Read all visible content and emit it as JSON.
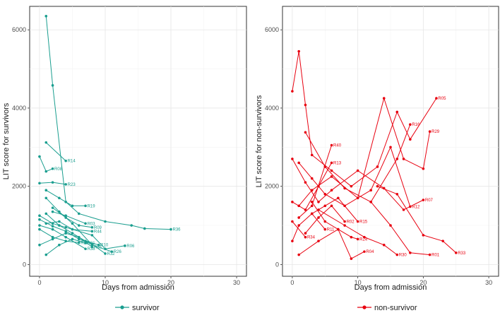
{
  "chart_data": [
    {
      "type": "line",
      "panel": "left",
      "title": "",
      "xlabel": "Days from admission",
      "ylabel": "LIT score for survivors",
      "xlim": [
        -1.5,
        31.5
      ],
      "ylim": [
        -300,
        6600
      ],
      "x_ticks": [
        0,
        10,
        20,
        30
      ],
      "y_ticks": [
        0,
        2000,
        4000,
        6000
      ],
      "grid": true,
      "color": "#1a9e8f",
      "legend_label": "survivor",
      "series": [
        {
          "name": "R36",
          "x": [
            1,
            2,
            4,
            6,
            10,
            14,
            16,
            20
          ],
          "y": [
            6350,
            4580,
            1600,
            1300,
            1100,
            1000,
            920,
            900
          ]
        },
        {
          "name": "R14",
          "x": [
            1,
            4
          ],
          "y": [
            3120,
            2650
          ]
        },
        {
          "name": "R08",
          "x": [
            0,
            1,
            2
          ],
          "y": [
            2760,
            2380,
            2450
          ]
        },
        {
          "name": "R23",
          "x": [
            0,
            2,
            4
          ],
          "y": [
            2080,
            2100,
            2050
          ]
        },
        {
          "name": "R19",
          "x": [
            1,
            3,
            5,
            7
          ],
          "y": [
            1900,
            1700,
            1500,
            1500
          ]
        },
        {
          "name": "R06",
          "x": [
            0,
            2,
            4,
            8,
            10,
            13
          ],
          "y": [
            1250,
            1050,
            950,
            750,
            400,
            480
          ]
        },
        {
          "name": "R26",
          "x": [
            1,
            3,
            5,
            8,
            11
          ],
          "y": [
            1700,
            1350,
            1050,
            500,
            330
          ]
        },
        {
          "name": "R32",
          "x": [
            0,
            2,
            4,
            6,
            8,
            10
          ],
          "y": [
            1150,
            980,
            850,
            650,
            520,
            280
          ]
        },
        {
          "name": "R09",
          "x": [
            2,
            4,
            6,
            8
          ],
          "y": [
            1450,
            1200,
            1000,
            950
          ]
        },
        {
          "name": "R44",
          "x": [
            1,
            3,
            5,
            8
          ],
          "y": [
            1050,
            1100,
            900,
            850
          ]
        },
        {
          "name": "R22",
          "x": [
            0,
            2,
            4,
            6
          ],
          "y": [
            900,
            700,
            600,
            560
          ]
        },
        {
          "name": "R10",
          "x": [
            1,
            3,
            5,
            7,
            9
          ],
          "y": [
            1300,
            1000,
            800,
            600,
            500
          ]
        },
        {
          "name": "R25",
          "x": [
            0,
            2,
            4,
            6,
            8
          ],
          "y": [
            500,
            650,
            800,
            700,
            450
          ]
        },
        {
          "name": "R31",
          "x": [
            1,
            3,
            5,
            7
          ],
          "y": [
            250,
            500,
            650,
            550
          ]
        },
        {
          "name": "R38",
          "x": [
            0,
            2,
            4,
            7
          ],
          "y": [
            1000,
            900,
            700,
            400
          ]
        },
        {
          "name": "R03",
          "x": [
            2,
            4,
            7
          ],
          "y": [
            1350,
            1250,
            1050
          ]
        }
      ]
    },
    {
      "type": "line",
      "panel": "right",
      "title": "",
      "xlabel": "Days from admission",
      "ylabel": "LIT score for non-survivors",
      "xlim": [
        -1.5,
        31.5
      ],
      "ylim": [
        -300,
        6600
      ],
      "x_ticks": [
        0,
        10,
        20,
        30
      ],
      "y_ticks": [
        0,
        2000,
        4000,
        6000
      ],
      "grid": true,
      "color": "#e8000f",
      "legend_label": "non-survivor",
      "series": [
        {
          "name": "R05",
          "x": [
            0,
            1,
            2,
            3,
            6,
            9,
            13,
            16,
            18,
            22
          ],
          "y": [
            4430,
            5450,
            4080,
            2800,
            2400,
            2000,
            2500,
            3900,
            3200,
            4250
          ]
        },
        {
          "name": "R29",
          "x": [
            1,
            3,
            6,
            10,
            14,
            17,
            20,
            21
          ],
          "y": [
            1500,
            1900,
            2250,
            1700,
            4250,
            2700,
            2450,
            3400
          ]
        },
        {
          "name": "R16",
          "x": [
            2,
            5,
            8,
            12,
            16,
            18
          ],
          "y": [
            3380,
            2500,
            1950,
            1600,
            2700,
            3580
          ]
        },
        {
          "name": "R07",
          "x": [
            0,
            2,
            4,
            6,
            10,
            14,
            17,
            20
          ],
          "y": [
            2700,
            2100,
            1600,
            1900,
            2400,
            1950,
            1400,
            1650
          ]
        },
        {
          "name": "R12",
          "x": [
            1,
            3,
            5,
            8,
            12,
            15,
            18
          ],
          "y": [
            2600,
            2200,
            1800,
            1500,
            1900,
            3000,
            1480
          ]
        },
        {
          "name": "R40",
          "x": [
            1,
            3,
            6
          ],
          "y": [
            1200,
            1500,
            3050
          ]
        },
        {
          "name": "R13",
          "x": [
            0,
            2,
            4,
            6
          ],
          "y": [
            1600,
            1400,
            2000,
            2600
          ]
        },
        {
          "name": "R15",
          "x": [
            3,
            5,
            7,
            10
          ],
          "y": [
            1300,
            1500,
            1700,
            1100
          ]
        },
        {
          "name": "R34",
          "x": [
            0,
            2
          ],
          "y": [
            1100,
            700
          ]
        },
        {
          "name": "R24",
          "x": [
            3,
            5,
            7,
            9,
            10
          ],
          "y": [
            1600,
            1100,
            900,
            700,
            650
          ]
        },
        {
          "name": "R04",
          "x": [
            1,
            4,
            7,
            9,
            11
          ],
          "y": [
            250,
            600,
            900,
            150,
            330
          ]
        },
        {
          "name": "R30",
          "x": [
            4,
            8,
            11,
            14,
            16
          ],
          "y": [
            1400,
            1000,
            700,
            500,
            250
          ]
        },
        {
          "name": "R01",
          "x": [
            12,
            15,
            18,
            21
          ],
          "y": [
            1600,
            1000,
            300,
            250
          ]
        },
        {
          "name": "R33",
          "x": [
            13,
            16,
            20,
            23,
            25
          ],
          "y": [
            2000,
            1800,
            750,
            600,
            300
          ]
        },
        {
          "name": "R02",
          "x": [
            2,
            4,
            6,
            8
          ],
          "y": [
            800,
            1200,
            1500,
            1100
          ]
        },
        {
          "name": "R11",
          "x": [
            0,
            1,
            3,
            5
          ],
          "y": [
            600,
            1000,
            1300,
            900
          ]
        }
      ]
    }
  ]
}
